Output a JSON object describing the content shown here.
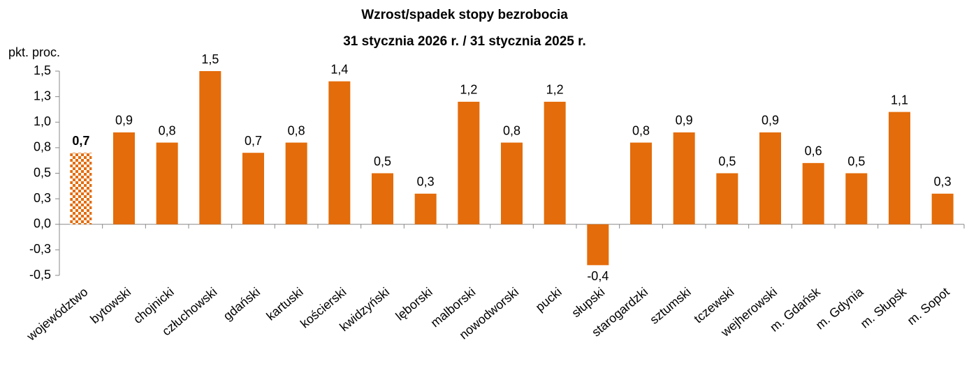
{
  "chart_data": {
    "type": "bar",
    "title": [
      "Wzrost/spadek stopy bezrobocia",
      "31 stycznia 2026 r. / 31 stycznia 2025 r."
    ],
    "ylabel": "pkt. proc.",
    "categories": [
      "województwo",
      "bytowski",
      "chojnicki",
      "człuchowski",
      "gdański",
      "kartuski",
      "kościerski",
      "kwidzyński",
      "lęborski",
      "malborski",
      "nowodworski",
      "pucki",
      "słupski",
      "starogardzki",
      "sztumski",
      "tczewski",
      "wejherowski",
      "m. Gdańsk",
      "m. Gdynia",
      "m. Słupsk",
      "m. Sopot"
    ],
    "values": [
      0.7,
      0.9,
      0.8,
      1.5,
      0.7,
      0.8,
      1.4,
      0.5,
      0.3,
      1.2,
      0.8,
      1.2,
      -0.4,
      0.8,
      0.9,
      0.5,
      0.9,
      0.6,
      0.5,
      1.1,
      0.3
    ],
    "value_labels": [
      "0,7",
      "0,9",
      "0,8",
      "1,5",
      "0,7",
      "0,8",
      "1,4",
      "0,5",
      "0,3",
      "1,2",
      "0,8",
      "1,2",
      "-0,4",
      "0,8",
      "0,9",
      "0,5",
      "0,9",
      "0,6",
      "0,5",
      "1,1",
      "0,3"
    ],
    "color": "#e46c0a",
    "ylim": [
      -0.5,
      1.5
    ],
    "yticks": [
      {
        "value": -0.5,
        "label": "-0,5"
      },
      {
        "value": -0.25,
        "label": "-0,3"
      },
      {
        "value": 0,
        "label": "0,0"
      },
      {
        "value": 0.25,
        "label": "0,3"
      },
      {
        "value": 0.5,
        "label": "0,5"
      },
      {
        "value": 0.75,
        "label": "0,8"
      },
      {
        "value": 1,
        "label": "1,0"
      },
      {
        "value": 1.25,
        "label": "1,3"
      },
      {
        "value": 1.5,
        "label": "1,5"
      }
    ]
  }
}
